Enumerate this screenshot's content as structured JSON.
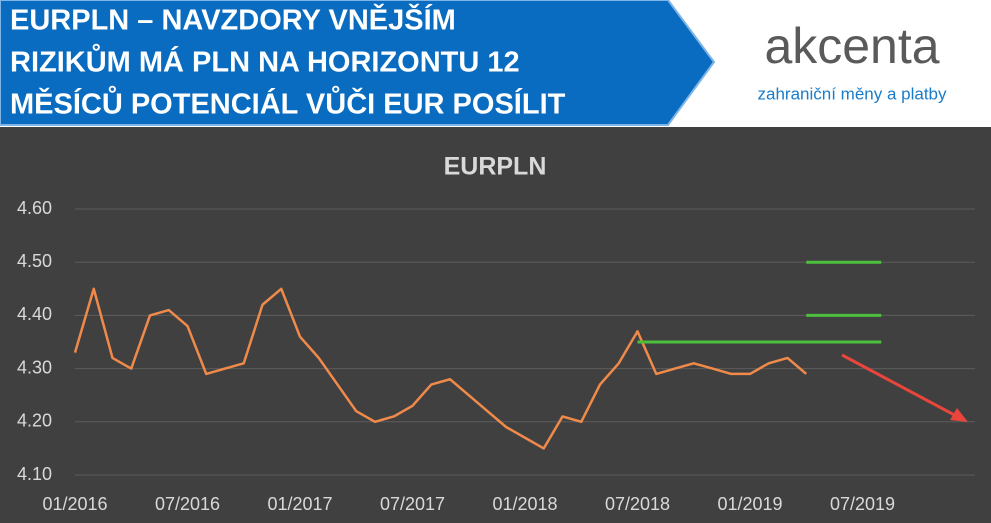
{
  "header": {
    "title_lines": [
      "EURPLN – NAVZDORY VNĚJŠÍM",
      "RIZIKŮM MÁ PLN NA HORIZONTU 12",
      "MĚSÍCŮ POTENCIÁL VŮČI EUR POSÍLIT"
    ],
    "logo": "akcenta",
    "logo_tagline": "zahraniční měny a platby"
  },
  "chart_data": {
    "type": "line",
    "title": "EURPLN",
    "x": [
      "2016-01",
      "2016-02",
      "2016-03",
      "2016-04",
      "2016-05",
      "2016-06",
      "2016-07",
      "2016-08",
      "2016-09",
      "2016-10",
      "2016-11",
      "2016-12",
      "2017-01",
      "2017-02",
      "2017-03",
      "2017-04",
      "2017-05",
      "2017-06",
      "2017-07",
      "2017-08",
      "2017-09",
      "2017-10",
      "2017-11",
      "2017-12",
      "2018-01",
      "2018-02",
      "2018-03",
      "2018-04",
      "2018-05",
      "2018-06",
      "2018-07",
      "2018-08",
      "2018-09",
      "2018-10",
      "2018-11",
      "2018-12",
      "2019-01",
      "2019-02",
      "2019-03",
      "2019-04"
    ],
    "series": [
      {
        "name": "EURPLN",
        "color": "#f08a4b",
        "values": [
          4.33,
          4.45,
          4.32,
          4.3,
          4.4,
          4.41,
          4.38,
          4.29,
          4.3,
          4.31,
          4.42,
          4.45,
          4.36,
          4.32,
          4.27,
          4.22,
          4.2,
          4.21,
          4.23,
          4.27,
          4.28,
          4.25,
          4.22,
          4.19,
          4.17,
          4.15,
          4.21,
          4.2,
          4.27,
          4.31,
          4.37,
          4.29,
          4.3,
          4.31,
          4.3,
          4.29,
          4.29,
          4.31,
          4.32,
          4.29
        ]
      }
    ],
    "levels": [
      {
        "value": 4.35,
        "x": [
          "2018-07",
          "2019-08"
        ],
        "color": "#4cbf3c"
      },
      {
        "value": 4.4,
        "x": [
          "2019-04",
          "2019-08"
        ],
        "color": "#4cbf3c"
      },
      {
        "value": 4.5,
        "x": [
          "2019-04",
          "2019-08"
        ],
        "color": "#4cbf3c"
      }
    ],
    "xlim": [
      "2016-01",
      "2020-01"
    ],
    "xticks": [
      {
        "value": "2016-01",
        "label": "01/2016"
      },
      {
        "value": "2016-07",
        "label": "07/2016"
      },
      {
        "value": "2017-01",
        "label": "01/2017"
      },
      {
        "value": "2017-07",
        "label": "07/2017"
      },
      {
        "value": "2018-01",
        "label": "01/2018"
      },
      {
        "value": "2018-07",
        "label": "07/2018"
      },
      {
        "value": "2019-01",
        "label": "01/2019"
      },
      {
        "value": "2019-07",
        "label": "07/2019"
      }
    ],
    "ylim": [
      4.1,
      4.6
    ],
    "yticks": [
      {
        "value": 4.1,
        "label": "4.10"
      },
      {
        "value": 4.2,
        "label": "4.20"
      },
      {
        "value": 4.3,
        "label": "4.30"
      },
      {
        "value": 4.4,
        "label": "4.40"
      },
      {
        "value": 4.5,
        "label": "4.50"
      },
      {
        "value": 4.6,
        "label": "4.60"
      }
    ],
    "grid": true
  }
}
